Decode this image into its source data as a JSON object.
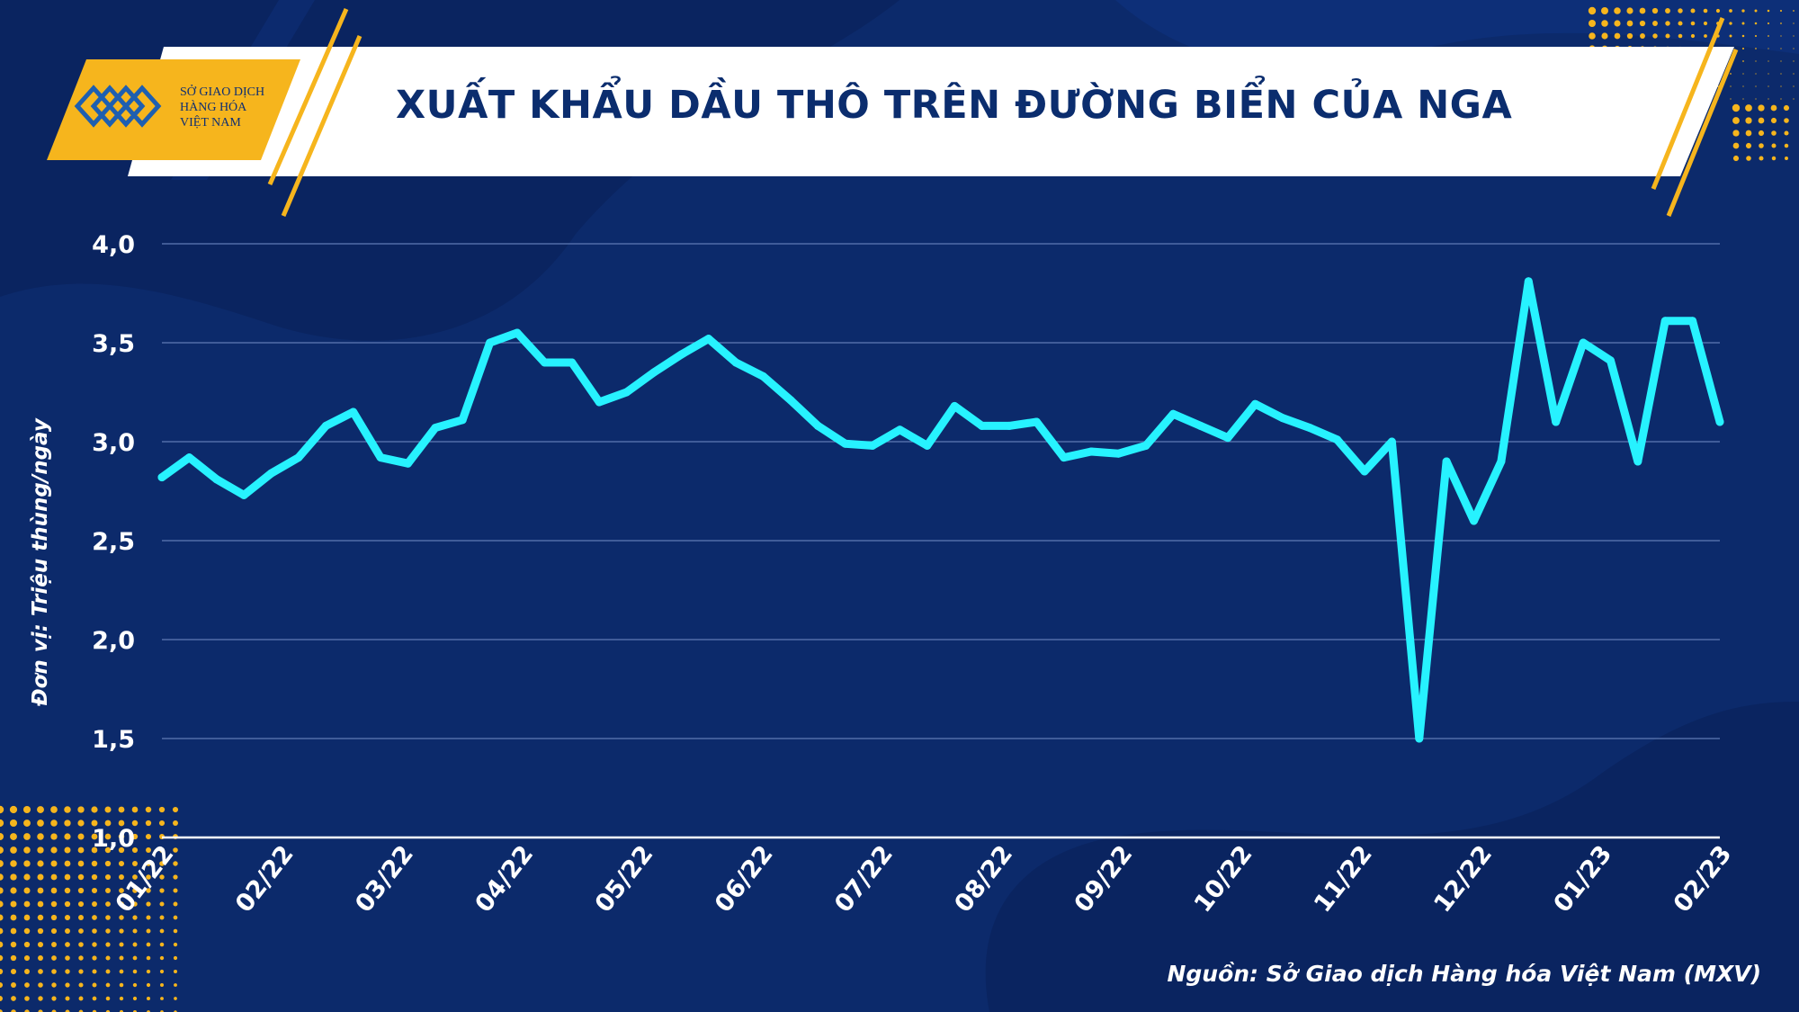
{
  "header": {
    "logo_lines": [
      "SỞ GIAO DỊCH",
      "HÀNG HÓA",
      "VIỆT NAM"
    ],
    "title": "XUẤT KHẨU DẦU THÔ TRÊN ĐƯỜNG BIỂN CỦA NGA"
  },
  "footer": {
    "source": "Nguồn: Sở Giao dịch Hàng hóa Việt Nam (MXV)"
  },
  "colors": {
    "background": "#0c2a6b",
    "line": "#27f2ff",
    "accent": "#f6b51d",
    "banner": "#ffffff"
  },
  "chart_data": {
    "type": "line",
    "title": "XUẤT KHẨU DẦU THÔ TRÊN ĐƯỜNG BIỂN CỦA NGA",
    "ylabel": "Đơn vị: Triệu thùng/ngày",
    "ylim": [
      1.0,
      4.0
    ],
    "y_ticks": [
      "1,0",
      "1,5",
      "2,0",
      "2,5",
      "3,0",
      "3,5",
      "4,0"
    ],
    "x_tick_labels": [
      "01/22",
      "02/22",
      "03/22",
      "04/22",
      "05/22",
      "06/22",
      "07/22",
      "08/22",
      "09/22",
      "10/22",
      "11/22",
      "12/22",
      "01/23",
      "02/23"
    ],
    "grid": true,
    "series": [
      {
        "values": [
          2.82,
          2.92,
          2.81,
          2.73,
          2.84,
          2.92,
          3.08,
          3.15,
          2.92,
          2.89,
          3.07,
          3.11,
          3.5,
          3.55,
          3.4,
          3.4,
          3.2,
          3.25,
          3.35,
          3.44,
          3.52,
          3.4,
          3.33,
          3.21,
          3.08,
          2.99,
          2.98,
          3.06,
          2.98,
          3.18,
          3.08,
          3.08,
          3.1,
          2.92,
          2.95,
          2.94,
          2.98,
          3.14,
          3.08,
          3.02,
          3.19,
          3.12,
          3.07,
          3.01,
          2.85,
          3.0,
          1.5,
          2.9,
          2.6,
          2.9,
          3.81,
          3.1,
          3.5,
          3.41,
          2.9,
          3.61,
          3.61,
          3.1
        ]
      }
    ]
  }
}
